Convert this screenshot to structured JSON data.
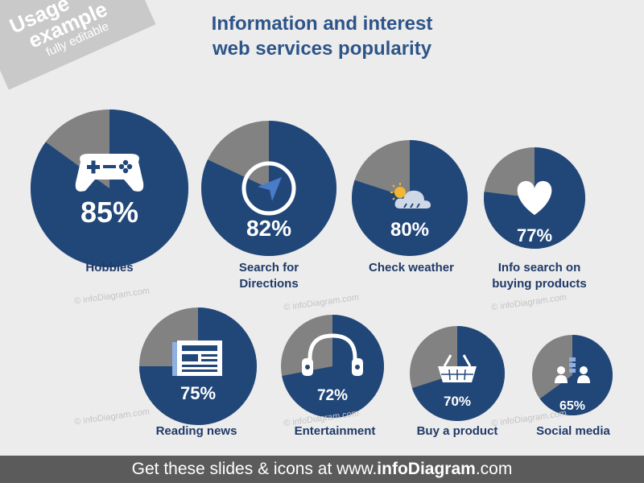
{
  "title_line1": "Information and interest",
  "title_line2": "web services popularity",
  "banner": {
    "line1": "Usage",
    "line2": "example",
    "line3": "fully editable"
  },
  "watermark": "© infoDiagram.com",
  "colors": {
    "primary": "#214779",
    "remainder": "#828282",
    "label": "#1f3a68",
    "title": "#2d5489",
    "footer": "#5b5b5b"
  },
  "chart_data": {
    "type": "pie",
    "title": "Information and interest web services popularity",
    "series": [
      {
        "category": "Hobbies",
        "value": 85,
        "label": "85%",
        "icon": "gamepad-icon"
      },
      {
        "category": "Search for Directions",
        "value": 82,
        "label": "82%",
        "icon": "navigation-icon"
      },
      {
        "category": "Check weather",
        "value": 80,
        "label": "80%",
        "icon": "weather-icon"
      },
      {
        "category": "Info search on buying products",
        "value": 77,
        "label": "77%",
        "icon": "heart-icon"
      },
      {
        "category": "Reading news",
        "value": 75,
        "label": "75%",
        "icon": "newspaper-icon"
      },
      {
        "category": "Entertainment",
        "value": 72,
        "label": "72%",
        "icon": "headphones-icon"
      },
      {
        "category": "Buy a product",
        "value": 70,
        "label": "70%",
        "icon": "basket-icon"
      },
      {
        "category": "Social media",
        "value": 65,
        "label": "65%",
        "icon": "people-icon"
      }
    ]
  },
  "labels": {
    "hobbies": "Hobbies",
    "directions_1": "Search for",
    "directions_2": "Directions",
    "weather": "Check weather",
    "buying_1": "Info search on",
    "buying_2": "buying products",
    "news": "Reading news",
    "entertainment": "Entertainment",
    "buy": "Buy a product",
    "social": "Social media"
  },
  "footer": {
    "prefix": "Get these slides & icons at www.",
    "brand": "infoDiagram",
    "suffix": ".com"
  }
}
